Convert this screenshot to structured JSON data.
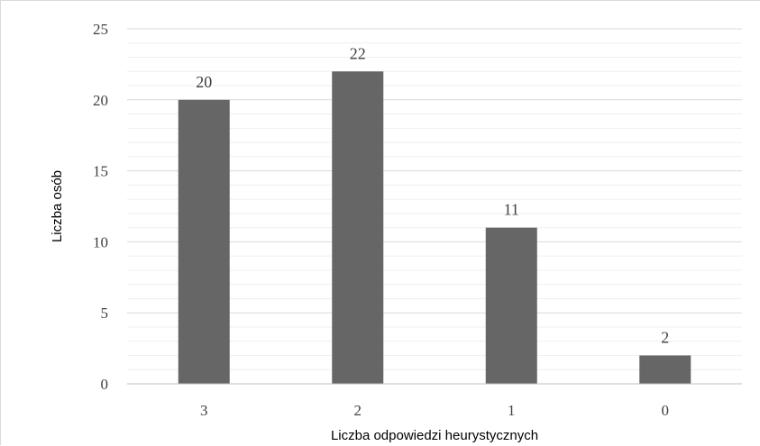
{
  "chart_data": {
    "type": "bar",
    "title": "",
    "xlabel": "Liczba odpowiedzi heurystycznych",
    "ylabel": "Liczba osób",
    "categories": [
      "3",
      "2",
      "1",
      "0"
    ],
    "values": [
      20,
      22,
      11,
      2
    ],
    "data_labels": [
      "20",
      "22",
      "11",
      "2"
    ],
    "ylim": [
      0,
      25
    ],
    "y_ticks": [
      0,
      5,
      10,
      15,
      20,
      25
    ],
    "y_tick_labels": [
      "0",
      "5",
      "10",
      "15",
      "20",
      "25"
    ],
    "grid": true,
    "legend": "none",
    "bar_color": "#666666",
    "grid_color": "#d9d9d9"
  }
}
